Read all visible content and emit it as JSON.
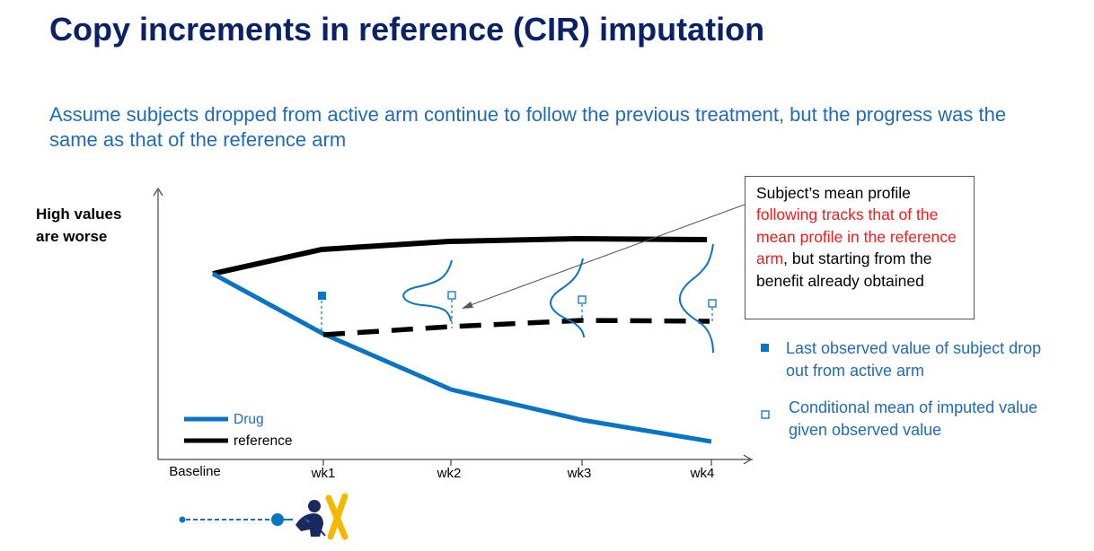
{
  "title": "Copy increments in reference (CIR) imputation",
  "subtitle": "Assume subjects dropped from active arm continue to follow the previous treatment, but the progress was the same as that of the reference arm",
  "y_axis_label_line1": "High values",
  "y_axis_label_line2": "are worse",
  "x_ticks": [
    "Baseline",
    "wk1",
    "wk2",
    "wk3",
    "wk4"
  ],
  "legend_chart": {
    "drug": "Drug",
    "reference": "reference"
  },
  "callout": {
    "part1": "Subject’s mean profile ",
    "part2_red": "following tracks that of the mean profile in the reference arm",
    "part3": ", but starting from the benefit already obtained"
  },
  "legend_right": {
    "filled_marker": "Last observed value of subject drop out from active arm",
    "open_marker": "Conditional mean of imputed value given observed value"
  },
  "colors": {
    "title": "#0b2265",
    "accent_blue": "#1f6bb5",
    "drug_line": "#0a74c4",
    "reference_line": "#000000",
    "callout_red": "#e8201f",
    "x_mark": "#f5b800"
  },
  "icons": [
    "dropout-person-icon",
    "x-mark-icon"
  ]
}
